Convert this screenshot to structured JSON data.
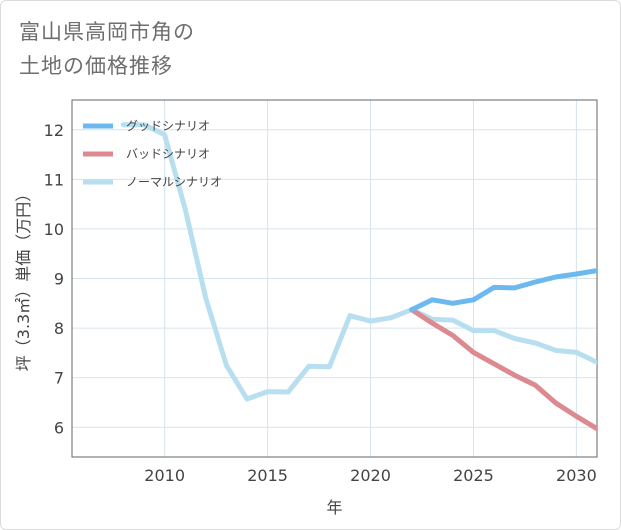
{
  "title_lines": [
    "富山県高岡市角の",
    "土地の価格推移"
  ],
  "chart_data": {
    "type": "line",
    "xlabel": "年",
    "ylabel": "坪（3.3㎡）単価（万円）",
    "xlim": [
      2005.5,
      2031
    ],
    "ylim": [
      5.4,
      12.6
    ],
    "x_ticks": [
      2010,
      2015,
      2020,
      2025,
      2030
    ],
    "y_ticks": [
      6,
      7,
      8,
      9,
      10,
      11,
      12
    ],
    "grid": true,
    "legend_position": "top-left",
    "series": [
      {
        "name": "グッドシナリオ",
        "color": "#6cb9f0",
        "x": [
          2022,
          2023,
          2024,
          2025,
          2026,
          2027,
          2028,
          2029,
          2030,
          2031
        ],
        "y": [
          8.37,
          8.57,
          8.5,
          8.57,
          8.82,
          8.81,
          8.93,
          9.03,
          9.09,
          9.16
        ]
      },
      {
        "name": "バッドシナリオ",
        "color": "#dc8a8f",
        "x": [
          2022,
          2023,
          2024,
          2025,
          2026,
          2027,
          2028,
          2029,
          2030,
          2031
        ],
        "y": [
          8.37,
          8.1,
          7.85,
          7.51,
          7.28,
          7.05,
          6.85,
          6.49,
          6.22,
          5.97
        ]
      },
      {
        "name": "ノーマルシナリオ",
        "color": "#b8dff0",
        "x": [
          2008,
          2009,
          2010,
          2011,
          2012,
          2013,
          2014,
          2015,
          2016,
          2017,
          2018,
          2019,
          2020,
          2021,
          2022,
          2023,
          2024,
          2025,
          2026,
          2027,
          2028,
          2029,
          2030,
          2031
        ],
        "y": [
          12.1,
          12.1,
          11.9,
          10.4,
          8.6,
          7.25,
          6.57,
          6.72,
          6.71,
          7.23,
          7.22,
          8.25,
          8.14,
          8.21,
          8.37,
          8.18,
          8.16,
          7.95,
          7.95,
          7.79,
          7.7,
          7.55,
          7.51,
          7.31
        ]
      }
    ]
  }
}
